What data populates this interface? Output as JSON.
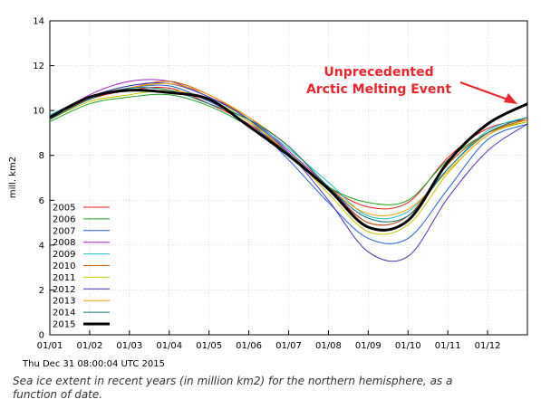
{
  "timestamp": "Thu Dec 31 08:00:04 UTC 2015",
  "caption": "Sea ice extent in recent years (in million km2) for the northern hemisphere, as a function of date.",
  "chart_data": {
    "type": "line",
    "ylabel": "mill. km2",
    "xlabel": "",
    "ylim": [
      0,
      14
    ],
    "yticks": [
      0,
      2,
      4,
      6,
      8,
      10,
      12,
      14
    ],
    "x_tick_labels": [
      "01/01",
      "01/02",
      "01/03",
      "01/04",
      "01/05",
      "01/06",
      "01/07",
      "01/08",
      "01/09",
      "01/10",
      "01/11",
      "01/12"
    ],
    "legend_position": "bottom-left",
    "annotation": "Unprecedented Arctic Melting Event",
    "colors": {
      "accent_annotation": "#e8262b"
    },
    "series": [
      {
        "name": "2005",
        "color": "#e0201c",
        "bold": false,
        "values": [
          9.7,
          10.5,
          10.9,
          11.0,
          10.3,
          9.4,
          8.1,
          6.6,
          5.7,
          5.9,
          7.9,
          9.2,
          9.6
        ]
      },
      {
        "name": "2006",
        "color": "#1fa01f",
        "bold": false,
        "values": [
          9.5,
          10.3,
          10.6,
          10.7,
          10.2,
          9.3,
          8.1,
          6.6,
          5.9,
          6.0,
          7.8,
          9.0,
          9.5
        ]
      },
      {
        "name": "2007",
        "color": "#1f5fd0",
        "bold": false,
        "values": [
          9.8,
          10.6,
          11.0,
          11.1,
          10.4,
          9.5,
          7.8,
          5.9,
          4.3,
          4.3,
          6.5,
          8.7,
          9.4
        ]
      },
      {
        "name": "2008",
        "color": "#a020c0",
        "bold": false,
        "values": [
          9.6,
          10.7,
          11.3,
          11.3,
          10.6,
          9.7,
          8.2,
          6.6,
          5.0,
          5.3,
          7.6,
          9.0,
          9.6
        ]
      },
      {
        "name": "2009",
        "color": "#20c0c0",
        "bold": false,
        "values": [
          9.8,
          10.6,
          11.1,
          11.2,
          10.6,
          9.6,
          8.3,
          6.8,
          5.3,
          5.5,
          7.4,
          9.1,
          9.7
        ]
      },
      {
        "name": "2010",
        "color": "#c06000",
        "bold": false,
        "values": [
          9.7,
          10.6,
          11.0,
          11.3,
          10.7,
          9.6,
          8.0,
          6.5,
          5.0,
          5.3,
          7.6,
          9.0,
          9.6
        ]
      },
      {
        "name": "2011",
        "color": "#c8c800",
        "bold": false,
        "values": [
          9.6,
          10.4,
          10.7,
          10.9,
          10.5,
          9.5,
          8.1,
          6.3,
          4.6,
          4.9,
          7.2,
          8.9,
          9.5
        ]
      },
      {
        "name": "2012",
        "color": "#5030b0",
        "bold": false,
        "values": [
          9.7,
          10.6,
          11.1,
          11.2,
          10.6,
          9.6,
          8.1,
          6.0,
          3.7,
          3.5,
          6.1,
          8.2,
          9.4
        ]
      },
      {
        "name": "2013",
        "color": "#f0a000",
        "bold": false,
        "values": [
          9.7,
          10.6,
          11.0,
          11.2,
          10.7,
          9.7,
          8.4,
          6.6,
          5.4,
          5.6,
          7.3,
          8.9,
          9.6
        ]
      },
      {
        "name": "2014",
        "color": "#107070",
        "bold": false,
        "values": [
          9.6,
          10.5,
          11.0,
          10.9,
          10.3,
          9.6,
          8.4,
          6.6,
          5.2,
          5.3,
          7.4,
          9.0,
          9.7
        ]
      },
      {
        "name": "2015",
        "color": "#000000",
        "bold": true,
        "values": [
          9.7,
          10.6,
          10.9,
          10.8,
          10.5,
          9.3,
          8.0,
          6.5,
          4.8,
          5.1,
          7.7,
          9.4,
          10.3
        ]
      }
    ]
  }
}
